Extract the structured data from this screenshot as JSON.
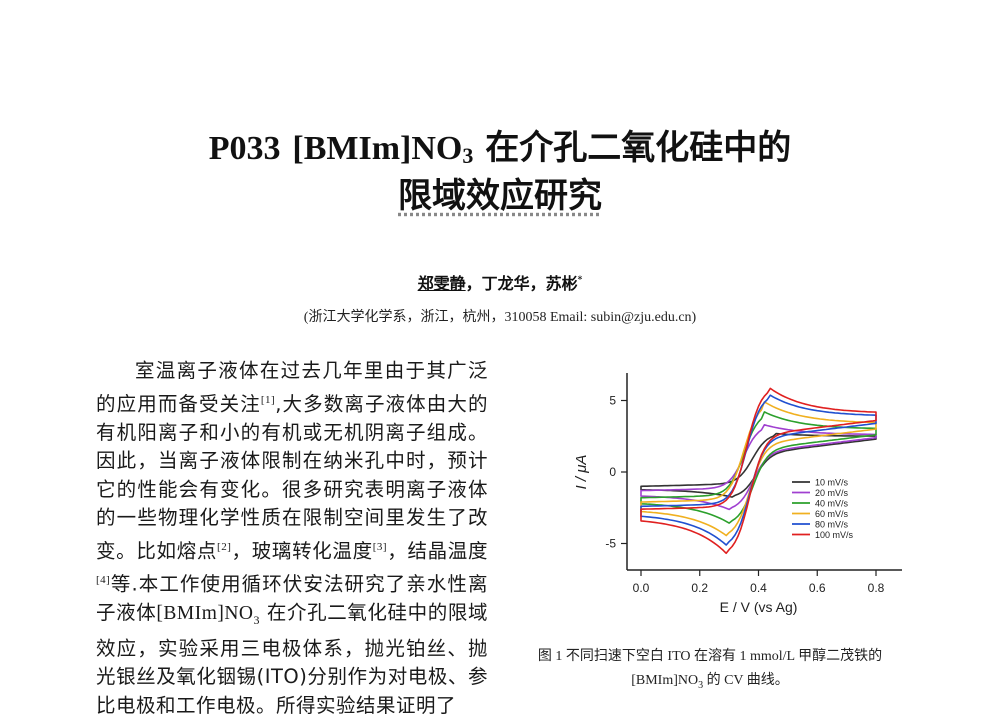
{
  "title": {
    "code": "P033",
    "compound": "[BMIm]NO",
    "compound_sub": "3",
    "line1_cn": "在介孔二氧化硅中的",
    "line2_cn": "限域效应研究"
  },
  "authors": {
    "first": "郑雯静",
    "rest": "，丁龙华，苏彬",
    "mark": "*"
  },
  "affiliation": "(浙江大学化学系，浙江，杭州，310058 Email: subin@zju.edu.cn)",
  "body": {
    "seg1": "室温离子液体在过去几年里由于其广泛的应用而备受关注",
    "ref1": "[1]",
    "seg2": ",大多数离子液体由大的有机阳离子和小的有机或无机阴离子组成。因此，当离子液体限制在纳米孔中时，预计它的性能会有变化。很多研究表明离子液体的一些物理化学性质在限制空间里发生了改变。比如熔点",
    "ref2": "[2]",
    "seg3": "，玻璃转化温度",
    "ref3": "[3]",
    "seg4": "，结晶温度",
    "ref4": "[4]",
    "seg5": "等.本工作使用循环伏安法研究了亲水性离子液体",
    "compound": "[BMIm]NO",
    "compound_sub": "3",
    "seg6": " 在介孔二氧化硅中的限域效应，实验采用三电极体系，抛光铂丝、抛光银丝及氧化铟锡(ITO)分别作为对电极、参比电极和工作电极。所得实验结果证明了"
  },
  "figure_caption": {
    "line1": "图 1  不同扫速下空白 ITO 在溶有 1 mmol/L 甲醇二茂铁的",
    "line2_compound": "[BMIm]NO",
    "line2_sub": "3",
    "line2_rest": " 的 CV 曲线。"
  },
  "chart_data": {
    "type": "line",
    "title": "",
    "xlabel": "E / V (vs Ag)",
    "ylabel": "I / μA",
    "xlim": [
      -0.04,
      0.84
    ],
    "ylim": [
      -6.8,
      6.8
    ],
    "xticks": [
      "0.0",
      "0.2",
      "0.4",
      "0.6",
      "0.8"
    ],
    "yticks": [
      "5",
      "0",
      "-5"
    ],
    "grid": false,
    "legend_position": "lower right",
    "x_range_scanned": [
      0.0,
      0.8
    ],
    "series": [
      {
        "name": "10 mV/s",
        "color": "#333333",
        "anodic_peak": {
          "E": 0.45,
          "I": 2.7
        },
        "cathodic_peak": {
          "E": 0.32,
          "I": -1.8
        },
        "I_at_0.0_fwd": -1.0,
        "I_at_0.0_rev": -1.2,
        "I_at_0.8_fwd": 2.3,
        "I_at_0.8_rev": 2.5
      },
      {
        "name": "20 mV/s",
        "color": "#a040d0",
        "anodic_peak": {
          "E": 0.42,
          "I": 3.3
        },
        "cathodic_peak": {
          "E": 0.31,
          "I": -2.7
        },
        "I_at_0.0_fwd": -1.3,
        "I_at_0.0_rev": -1.6,
        "I_at_0.8_fwd": 2.4,
        "I_at_0.8_rev": 2.6
      },
      {
        "name": "40 mV/s",
        "color": "#2ca02c",
        "anodic_peak": {
          "E": 0.42,
          "I": 4.2
        },
        "cathodic_peak": {
          "E": 0.31,
          "I": -3.7
        },
        "I_at_0.0_fwd": -1.8,
        "I_at_0.0_rev": -2.1,
        "I_at_0.8_fwd": 2.6,
        "I_at_0.8_rev": 3.0
      },
      {
        "name": "60 mV/s",
        "color": "#f0b020",
        "anodic_peak": {
          "E": 0.42,
          "I": 4.9
        },
        "cathodic_peak": {
          "E": 0.3,
          "I": -4.6
        },
        "I_at_0.0_fwd": -2.1,
        "I_at_0.0_rev": -2.6,
        "I_at_0.8_fwd": 3.0,
        "I_at_0.8_rev": 3.4
      },
      {
        "name": "80 mV/s",
        "color": "#2050d0",
        "anodic_peak": {
          "E": 0.43,
          "I": 5.5
        },
        "cathodic_peak": {
          "E": 0.3,
          "I": -5.3
        },
        "I_at_0.0_fwd": -2.4,
        "I_at_0.0_rev": -2.9,
        "I_at_0.8_fwd": 3.4,
        "I_at_0.8_rev": 3.9
      },
      {
        "name": "100 mV/s",
        "color": "#e02020",
        "anodic_peak": {
          "E": 0.43,
          "I": 6.0
        },
        "cathodic_peak": {
          "E": 0.3,
          "I": -5.9
        },
        "I_at_0.0_fwd": -2.6,
        "I_at_0.0_rev": -3.2,
        "I_at_0.8_fwd": 3.6,
        "I_at_0.8_rev": 4.1
      }
    ]
  }
}
